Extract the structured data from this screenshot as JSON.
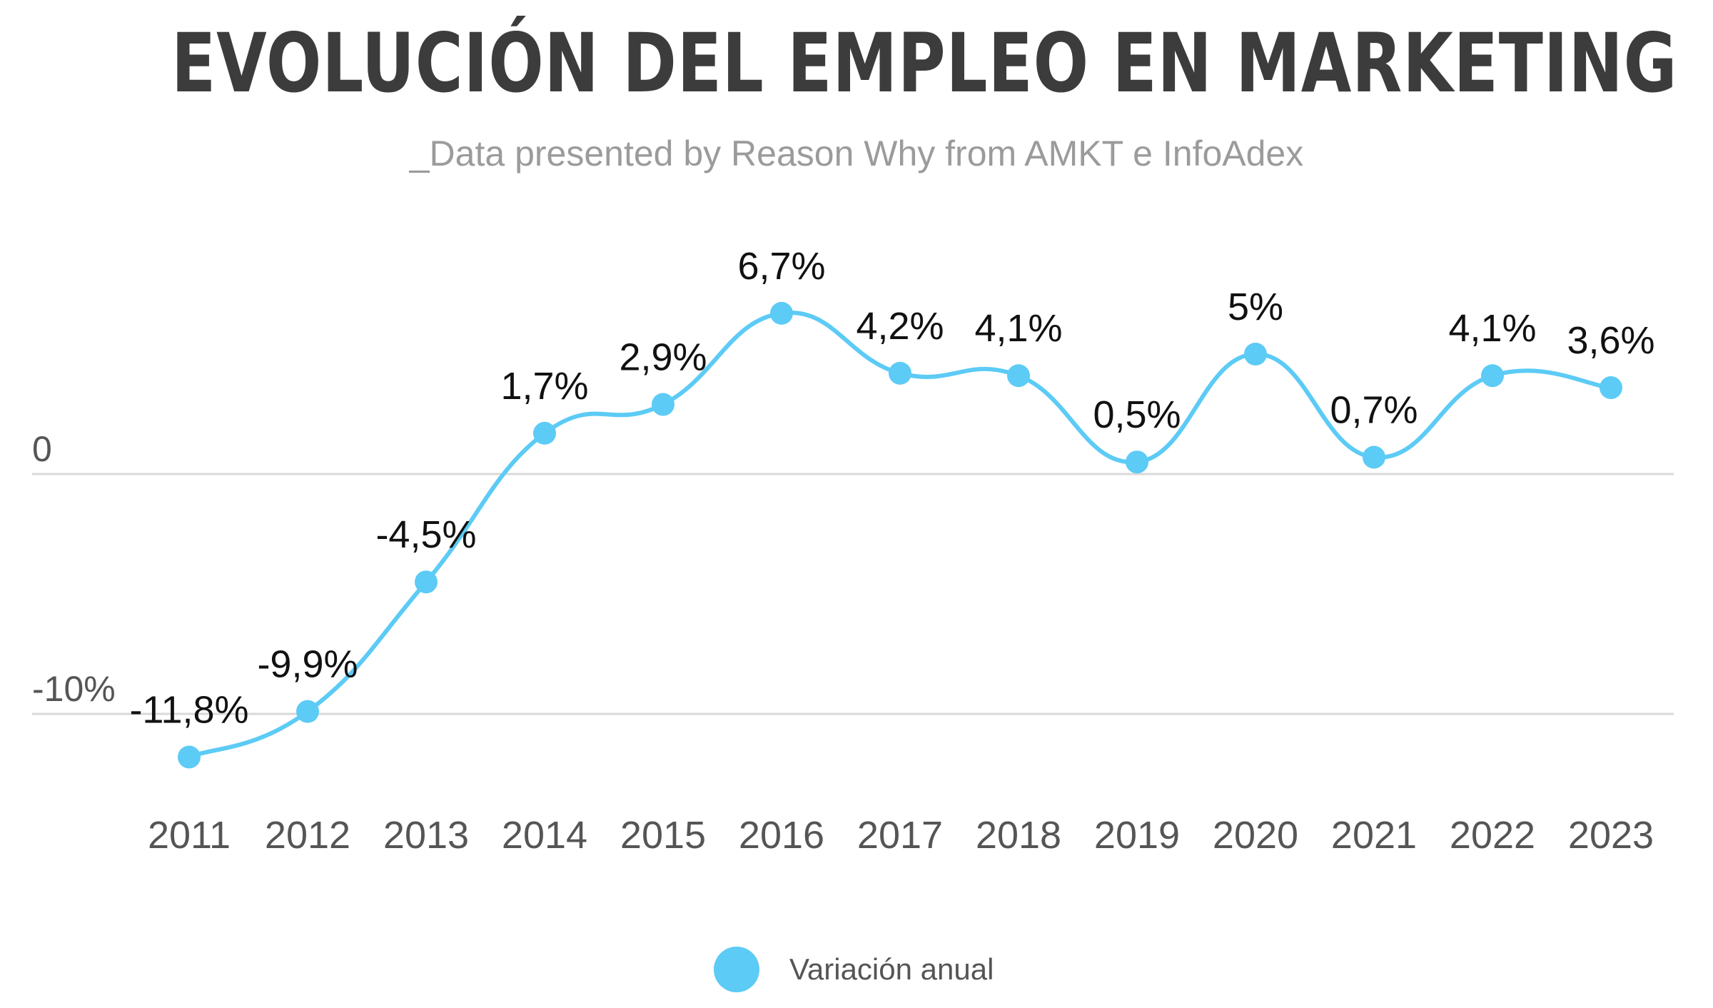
{
  "title": "EVOLUCIÓN DEL EMPLEO EN MARKETING",
  "subtitle": "_Data presented by Reason Why from AMKT e InfoAdex",
  "colors": {
    "series": "#5ccbf5",
    "gridline": "#d9d9d9",
    "title": "#3c3c3c",
    "subtitle": "#9b9b9b",
    "tick_text": "#555555",
    "data_label": "#111111"
  },
  "chart_data": {
    "type": "line",
    "title": "EVOLUCIÓN DEL EMPLEO EN MARKETING",
    "subtitle": "_Data presented by Reason Why from AMKT e InfoAdex",
    "x": [
      "2011",
      "2012",
      "2013",
      "2014",
      "2015",
      "2016",
      "2017",
      "2018",
      "2019",
      "2020",
      "2021",
      "2022",
      "2023"
    ],
    "series": [
      {
        "name": "Variación anual",
        "values": [
          -11.8,
          -9.9,
          -4.5,
          1.7,
          2.9,
          6.7,
          4.2,
          4.1,
          0.5,
          5,
          0.7,
          4.1,
          3.6
        ],
        "labels": [
          "-11,8%",
          "-9,9%",
          "-4,5%",
          "1,7%",
          "2,9%",
          "6,7%",
          "4,2%",
          "4,1%",
          "0,5%",
          "5%",
          "0,7%",
          "4,1%",
          "3,6%"
        ]
      }
    ],
    "y_ticks": [
      {
        "value": 0,
        "label": "0"
      },
      {
        "value": -10,
        "label": "-10%"
      }
    ],
    "ylim": [
      -15,
      10
    ],
    "grid": true,
    "smooth": true,
    "legend_position": "bottom-center"
  },
  "legend": {
    "label": "Variación anual"
  }
}
